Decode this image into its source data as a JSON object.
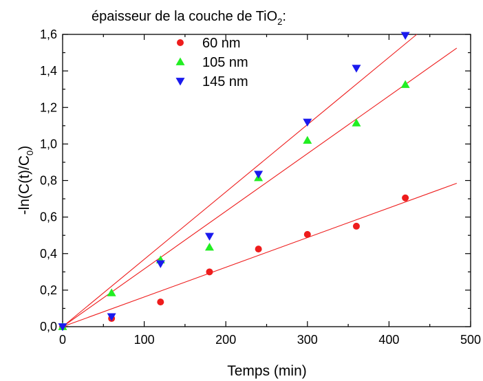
{
  "chart_data": {
    "type": "scatter",
    "title": "épaisseur de la couche de TiO",
    "title_subscript": "2",
    "title_suffix": ":",
    "xlabel": "Temps (min)",
    "ylabel": "-ln(C(t)/C",
    "ylabel_subscript": "0",
    "ylabel_suffix": ")",
    "xlim": [
      0,
      500
    ],
    "ylim": [
      0,
      1.6
    ],
    "x_ticks": [
      0,
      100,
      200,
      300,
      400,
      500
    ],
    "y_ticks": [
      "0,0",
      "0,2",
      "0,4",
      "0,6",
      "0,8",
      "1,0",
      "1,2",
      "1,4",
      "1,6"
    ],
    "grid": false,
    "legend_position": "top-left",
    "series": [
      {
        "name": "60 nm",
        "marker": "circle",
        "color": "#ee1c1c",
        "x": [
          0,
          60,
          120,
          180,
          240,
          300,
          360,
          420
        ],
        "y": [
          0,
          0.045,
          0.135,
          0.3,
          0.425,
          0.505,
          0.55,
          0.705
        ],
        "fit_end": [
          483,
          0.785
        ]
      },
      {
        "name": "105 nm",
        "marker": "triangle-up",
        "color": "#22ee22",
        "x": [
          0,
          60,
          120,
          180,
          240,
          300,
          360,
          420
        ],
        "y": [
          0,
          0.185,
          0.365,
          0.435,
          0.815,
          1.02,
          1.115,
          1.325
        ],
        "fit_end": [
          483,
          1.525
        ]
      },
      {
        "name": "145 nm",
        "marker": "triangle-down",
        "color": "#1a1aee",
        "x": [
          0,
          60,
          120,
          180,
          240,
          300,
          360,
          420
        ],
        "y": [
          0,
          0.055,
          0.345,
          0.495,
          0.835,
          1.12,
          1.415,
          1.595
        ],
        "fit_end": [
          434,
          1.6
        ]
      }
    ],
    "fit_line_color": "#ee1c1c"
  }
}
